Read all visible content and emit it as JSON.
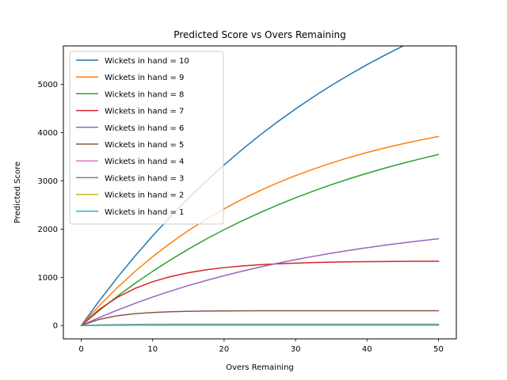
{
  "chart_data": {
    "type": "line",
    "title": "Predicted Score vs Overs Remaining",
    "xlabel": "Overs Remaining",
    "ylabel": "Predicted Score",
    "xlim": [
      -2.5,
      52.5
    ],
    "ylim": [
      -276,
      5800
    ],
    "xticks": [
      0,
      10,
      20,
      30,
      40,
      50
    ],
    "yticks": [
      0,
      1000,
      2000,
      3000,
      4000,
      5000
    ],
    "grid": false,
    "legend_placement": "top-left",
    "x": [
      0,
      2.5,
      5,
      7.5,
      10,
      12.5,
      15,
      17.5,
      20,
      22.5,
      25,
      27.5,
      30,
      32.5,
      35,
      37.5,
      40,
      42.5,
      45,
      47.5,
      50
    ],
    "series": [
      {
        "name": "Wickets in hand = 10",
        "color": "#1f77b4",
        "values": [
          0,
          507,
          985,
          1436,
          1861,
          2262,
          2640,
          2996,
          3332,
          3648,
          3947,
          4228,
          4493,
          4743,
          4979,
          5201,
          5411,
          5608,
          5795,
          5970,
          6135
        ]
      },
      {
        "name": "Wickets in hand = 9",
        "color": "#ff7f0e",
        "values": [
          0,
          407,
          779,
          1118,
          1428,
          1711,
          1969,
          2205,
          2420,
          2617,
          2796,
          2960,
          3110,
          3246,
          3371,
          3485,
          3589,
          3684,
          3770,
          3849,
          3922
        ]
      },
      {
        "name": "Wickets in hand = 8",
        "color": "#2ca02c",
        "values": [
          0,
          310,
          600,
          871,
          1125,
          1362,
          1585,
          1793,
          1988,
          2170,
          2341,
          2501,
          2650,
          2790,
          2921,
          3043,
          3158,
          3265,
          3365,
          3459,
          3547
        ]
      },
      {
        "name": "Wickets in hand = 7",
        "color": "#d62728",
        "values": [
          0,
          331,
          580,
          768,
          909,
          1015,
          1095,
          1156,
          1201,
          1235,
          1261,
          1280,
          1295,
          1306,
          1314,
          1320,
          1325,
          1328,
          1331,
          1333,
          1334
        ]
      },
      {
        "name": "Wickets in hand = 6",
        "color": "#9467bd",
        "values": [
          0,
          164,
          316,
          458,
          591,
          714,
          829,
          935,
          1034,
          1126,
          1212,
          1292,
          1366,
          1435,
          1499,
          1559,
          1614,
          1666,
          1714,
          1758,
          1800
        ]
      },
      {
        "name": "Wickets in hand = 5",
        "color": "#8c564b",
        "values": [
          0,
          127,
          202,
          246,
          271,
          286,
          295,
          300,
          303,
          305,
          306,
          307,
          307,
          307,
          307,
          308,
          308,
          308,
          308,
          308,
          308
        ]
      },
      {
        "name": "Wickets in hand = 4",
        "color": "#e377c2",
        "values": [
          0,
          12,
          20,
          24,
          26,
          27,
          28,
          28,
          28,
          28,
          28,
          28,
          28,
          28,
          28,
          28,
          28,
          28,
          28,
          28,
          28
        ]
      },
      {
        "name": "Wickets in hand = 3",
        "color": "#7f7f7f",
        "values": [
          0,
          9,
          14,
          17,
          18,
          19,
          19,
          20,
          20,
          20,
          20,
          20,
          20,
          20,
          20,
          20,
          20,
          20,
          20,
          20,
          20
        ]
      },
      {
        "name": "Wickets in hand = 2",
        "color": "#bcbd22",
        "values": [
          0,
          6,
          10,
          12,
          13,
          14,
          14,
          14,
          14,
          14,
          14,
          14,
          14,
          14,
          14,
          14,
          14,
          14,
          14,
          14,
          14
        ]
      },
      {
        "name": "Wickets in hand = 1",
        "color": "#17becf",
        "values": [
          0,
          4,
          6,
          7,
          8,
          8,
          8,
          8,
          8,
          8,
          8,
          8,
          8,
          8,
          8,
          8,
          8,
          8,
          8,
          8,
          8
        ]
      }
    ]
  }
}
